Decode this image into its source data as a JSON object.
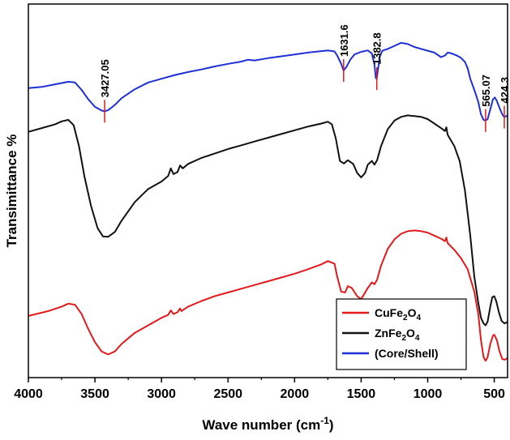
{
  "chart_data": {
    "type": "line",
    "title": "",
    "xlabel": "Wave number (cm-1)",
    "xlabel_parts": {
      "main": "Wave number (cm",
      "sup": "-1",
      "close": ")"
    },
    "ylabel": "Transimittance %",
    "xlim": [
      4000,
      400
    ],
    "ylim": [
      0,
      1
    ],
    "x_reversed": true,
    "x_ticks": [
      4000,
      3500,
      3000,
      2500,
      2000,
      1500,
      1000,
      500
    ],
    "y_ticks_labeled": false,
    "grid": false,
    "legend_position": "bottom-right",
    "series": [
      {
        "name": "CuFe2O4",
        "legend_parts": [
          "CuFe",
          "2",
          "O",
          "4"
        ],
        "color": "#e31a1c",
        "points": [
          [
            4000,
            0.165
          ],
          [
            3850,
            0.178
          ],
          [
            3750,
            0.19
          ],
          [
            3700,
            0.198
          ],
          [
            3650,
            0.195
          ],
          [
            3600,
            0.17
          ],
          [
            3550,
            0.13
          ],
          [
            3500,
            0.095
          ],
          [
            3450,
            0.07
          ],
          [
            3400,
            0.062
          ],
          [
            3350,
            0.07
          ],
          [
            3300,
            0.09
          ],
          [
            3200,
            0.12
          ],
          [
            3100,
            0.14
          ],
          [
            3000,
            0.16
          ],
          [
            2950,
            0.168
          ],
          [
            2930,
            0.18
          ],
          [
            2910,
            0.17
          ],
          [
            2880,
            0.175
          ],
          [
            2860,
            0.185
          ],
          [
            2850,
            0.178
          ],
          [
            2800,
            0.19
          ],
          [
            2700,
            0.205
          ],
          [
            2600,
            0.218
          ],
          [
            2500,
            0.228
          ],
          [
            2400,
            0.238
          ],
          [
            2300,
            0.248
          ],
          [
            2200,
            0.258
          ],
          [
            2100,
            0.268
          ],
          [
            2000,
            0.278
          ],
          [
            1900,
            0.29
          ],
          [
            1800,
            0.303
          ],
          [
            1750,
            0.312
          ],
          [
            1700,
            0.305
          ],
          [
            1680,
            0.27
          ],
          [
            1650,
            0.23
          ],
          [
            1620,
            0.228
          ],
          [
            1600,
            0.245
          ],
          [
            1570,
            0.24
          ],
          [
            1530,
            0.218
          ],
          [
            1500,
            0.21
          ],
          [
            1480,
            0.222
          ],
          [
            1450,
            0.24
          ],
          [
            1420,
            0.255
          ],
          [
            1400,
            0.25
          ],
          [
            1380,
            0.262
          ],
          [
            1350,
            0.3
          ],
          [
            1300,
            0.345
          ],
          [
            1250,
            0.37
          ],
          [
            1200,
            0.385
          ],
          [
            1150,
            0.392
          ],
          [
            1100,
            0.394
          ],
          [
            1050,
            0.392
          ],
          [
            1000,
            0.388
          ],
          [
            950,
            0.38
          ],
          [
            900,
            0.372
          ],
          [
            870,
            0.365
          ],
          [
            860,
            0.375
          ],
          [
            850,
            0.36
          ],
          [
            800,
            0.342
          ],
          [
            750,
            0.32
          ],
          [
            700,
            0.29
          ],
          [
            650,
            0.23
          ],
          [
            620,
            0.17
          ],
          [
            600,
            0.1
          ],
          [
            580,
            0.055
          ],
          [
            565,
            0.045
          ],
          [
            550,
            0.055
          ],
          [
            530,
            0.09
          ],
          [
            510,
            0.112
          ],
          [
            500,
            0.115
          ],
          [
            480,
            0.1
          ],
          [
            460,
            0.07
          ],
          [
            440,
            0.05
          ],
          [
            424,
            0.048
          ],
          [
            410,
            0.05
          ],
          [
            400,
            0.052
          ]
        ]
      },
      {
        "name": "ZnFe2O4",
        "legend_parts": [
          "ZnFe",
          "2",
          "O",
          "4"
        ],
        "color": "#111111",
        "points": [
          [
            4000,
            0.658
          ],
          [
            3900,
            0.668
          ],
          [
            3800,
            0.678
          ],
          [
            3750,
            0.686
          ],
          [
            3700,
            0.69
          ],
          [
            3660,
            0.676
          ],
          [
            3620,
            0.62
          ],
          [
            3580,
            0.54
          ],
          [
            3530,
            0.46
          ],
          [
            3480,
            0.4
          ],
          [
            3440,
            0.378
          ],
          [
            3400,
            0.377
          ],
          [
            3350,
            0.39
          ],
          [
            3300,
            0.42
          ],
          [
            3200,
            0.47
          ],
          [
            3100,
            0.505
          ],
          [
            3000,
            0.525
          ],
          [
            2950,
            0.54
          ],
          [
            2930,
            0.56
          ],
          [
            2910,
            0.545
          ],
          [
            2880,
            0.55
          ],
          [
            2860,
            0.568
          ],
          [
            2840,
            0.56
          ],
          [
            2800,
            0.572
          ],
          [
            2700,
            0.588
          ],
          [
            2600,
            0.6
          ],
          [
            2500,
            0.612
          ],
          [
            2400,
            0.622
          ],
          [
            2300,
            0.632
          ],
          [
            2200,
            0.642
          ],
          [
            2100,
            0.652
          ],
          [
            2000,
            0.662
          ],
          [
            1900,
            0.672
          ],
          [
            1800,
            0.68
          ],
          [
            1750,
            0.685
          ],
          [
            1720,
            0.678
          ],
          [
            1690,
            0.64
          ],
          [
            1660,
            0.58
          ],
          [
            1630,
            0.573
          ],
          [
            1600,
            0.582
          ],
          [
            1560,
            0.572
          ],
          [
            1530,
            0.548
          ],
          [
            1500,
            0.536
          ],
          [
            1470,
            0.548
          ],
          [
            1450,
            0.57
          ],
          [
            1420,
            0.58
          ],
          [
            1400,
            0.57
          ],
          [
            1380,
            0.582
          ],
          [
            1350,
            0.62
          ],
          [
            1300,
            0.665
          ],
          [
            1250,
            0.688
          ],
          [
            1200,
            0.698
          ],
          [
            1150,
            0.702
          ],
          [
            1100,
            0.7
          ],
          [
            1050,
            0.698
          ],
          [
            1000,
            0.692
          ],
          [
            950,
            0.68
          ],
          [
            900,
            0.668
          ],
          [
            870,
            0.66
          ],
          [
            860,
            0.67
          ],
          [
            850,
            0.65
          ],
          [
            800,
            0.62
          ],
          [
            760,
            0.58
          ],
          [
            720,
            0.5
          ],
          [
            680,
            0.38
          ],
          [
            650,
            0.27
          ],
          [
            620,
            0.2
          ],
          [
            600,
            0.16
          ],
          [
            580,
            0.145
          ],
          [
            565,
            0.14
          ],
          [
            550,
            0.15
          ],
          [
            530,
            0.19
          ],
          [
            515,
            0.215
          ],
          [
            500,
            0.218
          ],
          [
            485,
            0.205
          ],
          [
            465,
            0.175
          ],
          [
            445,
            0.152
          ],
          [
            424,
            0.145
          ],
          [
            410,
            0.147
          ],
          [
            400,
            0.15
          ]
        ]
      },
      {
        "name": "(Core/Shell)",
        "legend_parts": [
          "(Core/Shell)"
        ],
        "color": "#1f2fd8",
        "points": [
          [
            4000,
            0.775
          ],
          [
            3900,
            0.778
          ],
          [
            3800,
            0.785
          ],
          [
            3700,
            0.792
          ],
          [
            3650,
            0.79
          ],
          [
            3600,
            0.77
          ],
          [
            3550,
            0.745
          ],
          [
            3500,
            0.725
          ],
          [
            3450,
            0.715
          ],
          [
            3427,
            0.713
          ],
          [
            3400,
            0.716
          ],
          [
            3350,
            0.73
          ],
          [
            3300,
            0.748
          ],
          [
            3200,
            0.772
          ],
          [
            3100,
            0.79
          ],
          [
            3000,
            0.8
          ],
          [
            2900,
            0.81
          ],
          [
            2800,
            0.818
          ],
          [
            2700,
            0.825
          ],
          [
            2600,
            0.833
          ],
          [
            2500,
            0.84
          ],
          [
            2400,
            0.846
          ],
          [
            2350,
            0.851
          ],
          [
            2300,
            0.849
          ],
          [
            2200,
            0.855
          ],
          [
            2100,
            0.86
          ],
          [
            2000,
            0.865
          ],
          [
            1900,
            0.87
          ],
          [
            1800,
            0.874
          ],
          [
            1750,
            0.876
          ],
          [
            1700,
            0.873
          ],
          [
            1680,
            0.862
          ],
          [
            1650,
            0.84
          ],
          [
            1632,
            0.822
          ],
          [
            1610,
            0.832
          ],
          [
            1580,
            0.852
          ],
          [
            1550,
            0.865
          ],
          [
            1500,
            0.872
          ],
          [
            1450,
            0.876
          ],
          [
            1420,
            0.868
          ],
          [
            1400,
            0.838
          ],
          [
            1390,
            0.802
          ],
          [
            1383,
            0.8
          ],
          [
            1375,
            0.82
          ],
          [
            1360,
            0.86
          ],
          [
            1340,
            0.875
          ],
          [
            1300,
            0.88
          ],
          [
            1250,
            0.888
          ],
          [
            1200,
            0.896
          ],
          [
            1150,
            0.893
          ],
          [
            1100,
            0.885
          ],
          [
            1050,
            0.88
          ],
          [
            1000,
            0.875
          ],
          [
            950,
            0.87
          ],
          [
            900,
            0.858
          ],
          [
            870,
            0.862
          ],
          [
            850,
            0.87
          ],
          [
            820,
            0.868
          ],
          [
            780,
            0.862
          ],
          [
            750,
            0.856
          ],
          [
            720,
            0.845
          ],
          [
            700,
            0.828
          ],
          [
            680,
            0.8
          ],
          [
            650,
            0.77
          ],
          [
            620,
            0.738
          ],
          [
            600,
            0.705
          ],
          [
            580,
            0.69
          ],
          [
            565,
            0.688
          ],
          [
            550,
            0.692
          ],
          [
            530,
            0.718
          ],
          [
            510,
            0.745
          ],
          [
            495,
            0.75
          ],
          [
            480,
            0.74
          ],
          [
            460,
            0.722
          ],
          [
            440,
            0.705
          ],
          [
            424,
            0.697
          ],
          [
            410,
            0.7
          ],
          [
            400,
            0.702
          ]
        ]
      }
    ],
    "annotations": [
      {
        "label": "3427.05",
        "x": 3427.05
      },
      {
        "label": "1631.6",
        "x": 1631.6
      },
      {
        "label": "1382.8",
        "x": 1382.8
      },
      {
        "label": "565.07",
        "x": 565.07
      },
      {
        "label": "424.3",
        "x": 424.3
      }
    ],
    "annotation_series": "(Core/Shell)",
    "annotation_color": "#e31a1c"
  }
}
